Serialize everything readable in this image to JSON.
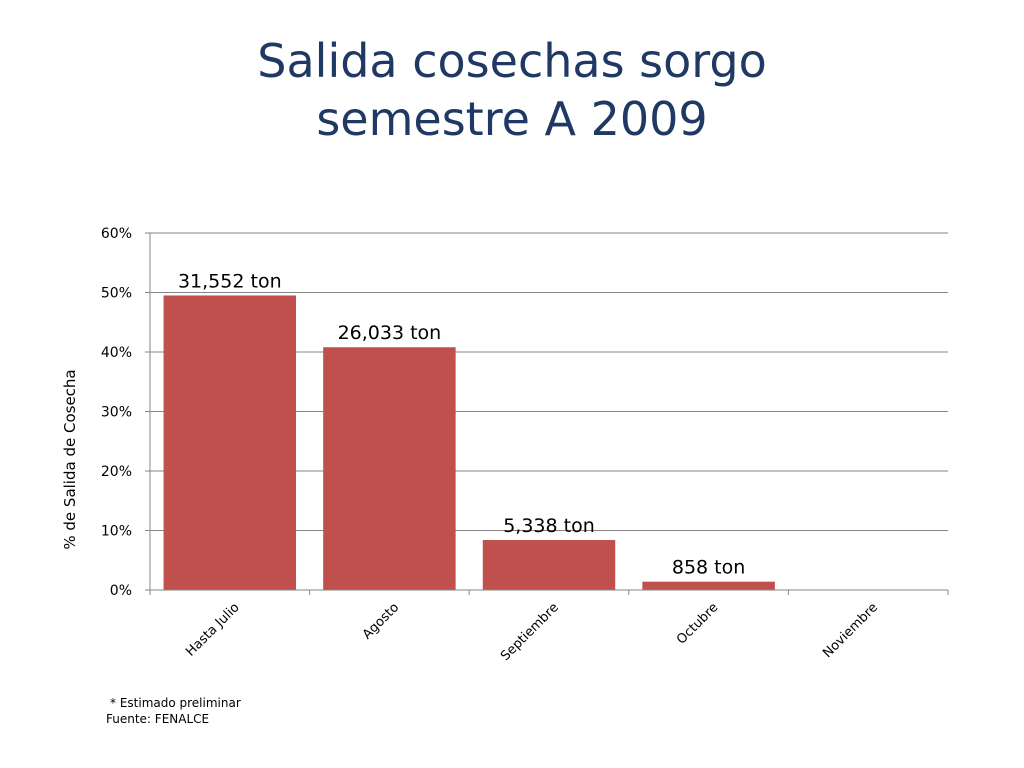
{
  "slide": {
    "title_line1": "Salida cosechas sorgo",
    "title_line2": "semestre A 2009"
  },
  "footnote": {
    "note": "* Estimado preliminar",
    "source": "Fuente: FENALCE"
  },
  "chart_data": {
    "type": "bar",
    "title": "Salida cosechas sorgo semestre A 2009",
    "xlabel": "",
    "ylabel": "% de Salida de Cosecha",
    "ylim": [
      0,
      60
    ],
    "y_ticks": [
      0,
      10,
      20,
      30,
      40,
      50,
      60
    ],
    "y_tick_suffix": "%",
    "grid": true,
    "legend": "none",
    "categories": [
      "Hasta Julio",
      "Agosto",
      "Septiembre",
      "Octubre",
      "Noviembre"
    ],
    "values": [
      49.5,
      40.8,
      8.4,
      1.4,
      0
    ],
    "data_labels": [
      "31,552 ton",
      "26,033 ton",
      "5,338 ton",
      "858 ton",
      ""
    ],
    "bar_color": "#c0504d",
    "title_color": "#1f3864"
  }
}
